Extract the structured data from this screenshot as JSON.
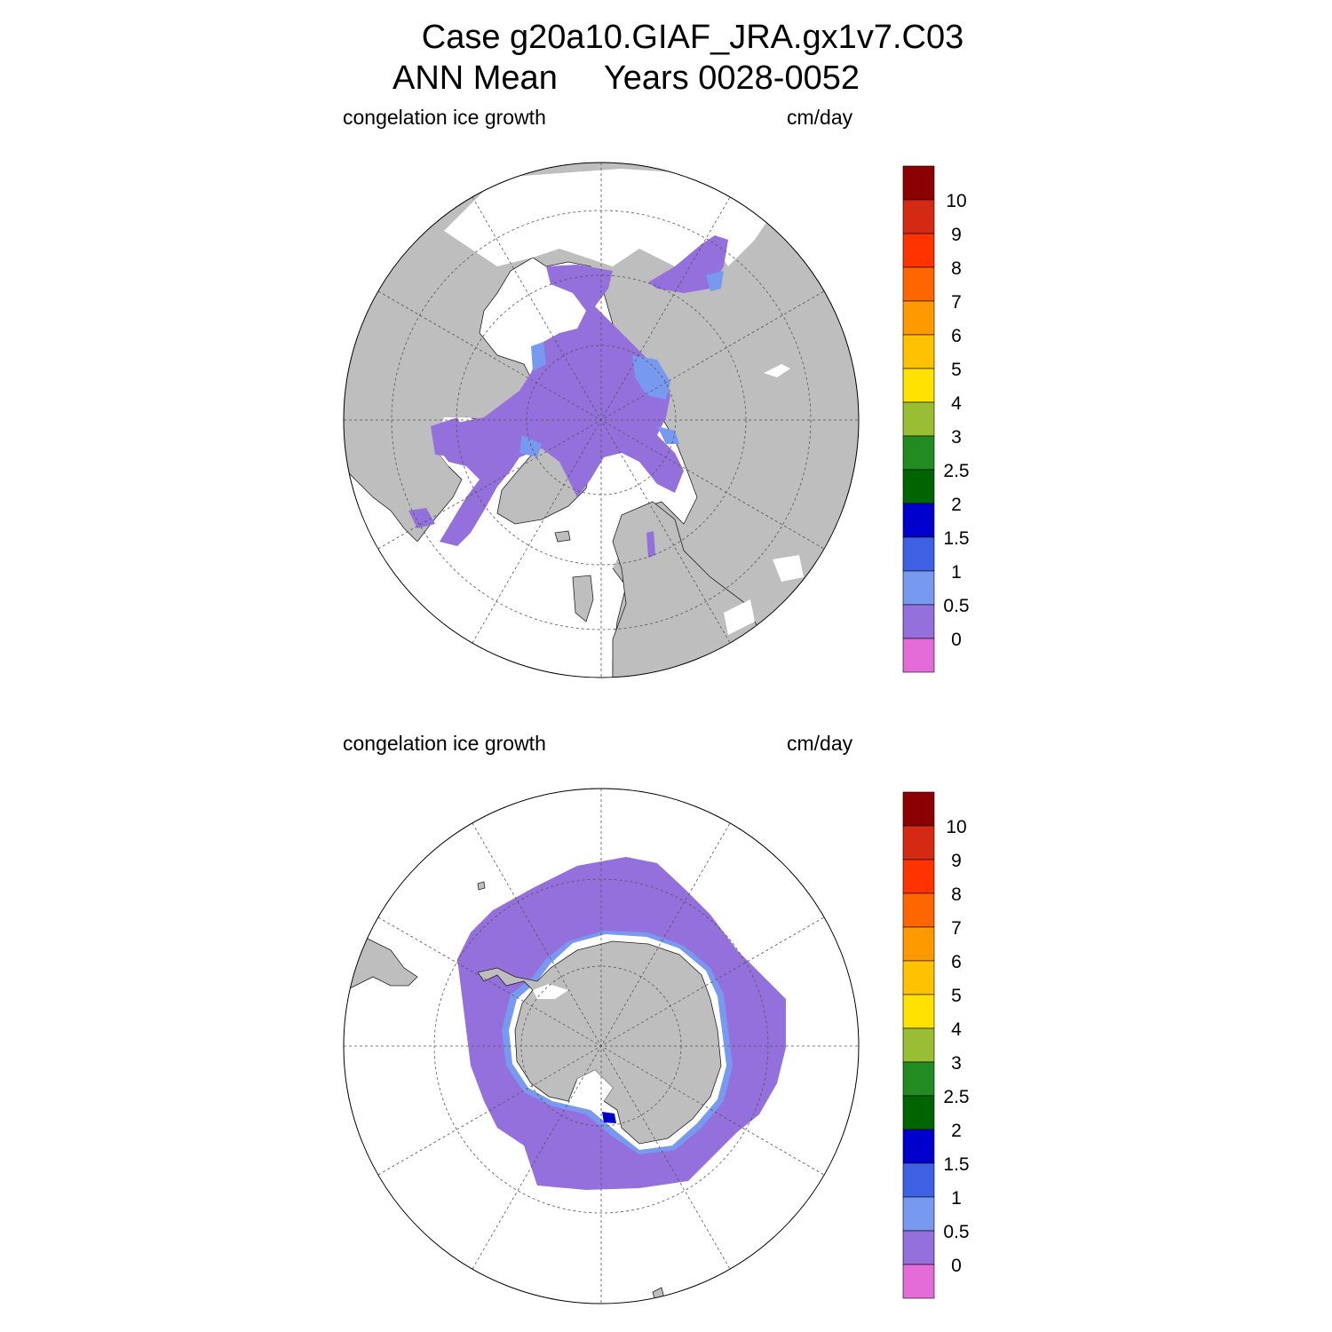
{
  "header": {
    "title_line1": "Case g20a10.GIAF_JRA.gx1v7.C03",
    "title_line2": "ANN Mean     Years 0028-0052"
  },
  "panels": [
    {
      "id": "north",
      "left_label": "congelation ice growth",
      "right_label": "cm/day"
    },
    {
      "id": "south",
      "left_label": "congelation ice growth",
      "right_label": "cm/day"
    }
  ],
  "colorbar": {
    "labels": [
      "10",
      "9",
      "8",
      "7",
      "6",
      "5",
      "4",
      "3",
      "2.5",
      "2",
      "1.5",
      "1",
      "0.5",
      "0"
    ],
    "colors": [
      "#8B0000",
      "#D42A14",
      "#FF3300",
      "#FF6600",
      "#FF9900",
      "#FFC200",
      "#FFE200",
      "#99BE33",
      "#228B22",
      "#006400",
      "#0000CC",
      "#3E62E3",
      "#7799F0",
      "#9370DB",
      "#E46CD8"
    ]
  },
  "map_colors": {
    "land": "#BEBEBE",
    "ocean": "#FFFFFF",
    "ice_low": "#9370DB",
    "ice_mid": "#7799F0",
    "ice_high": "#0000CC"
  }
}
